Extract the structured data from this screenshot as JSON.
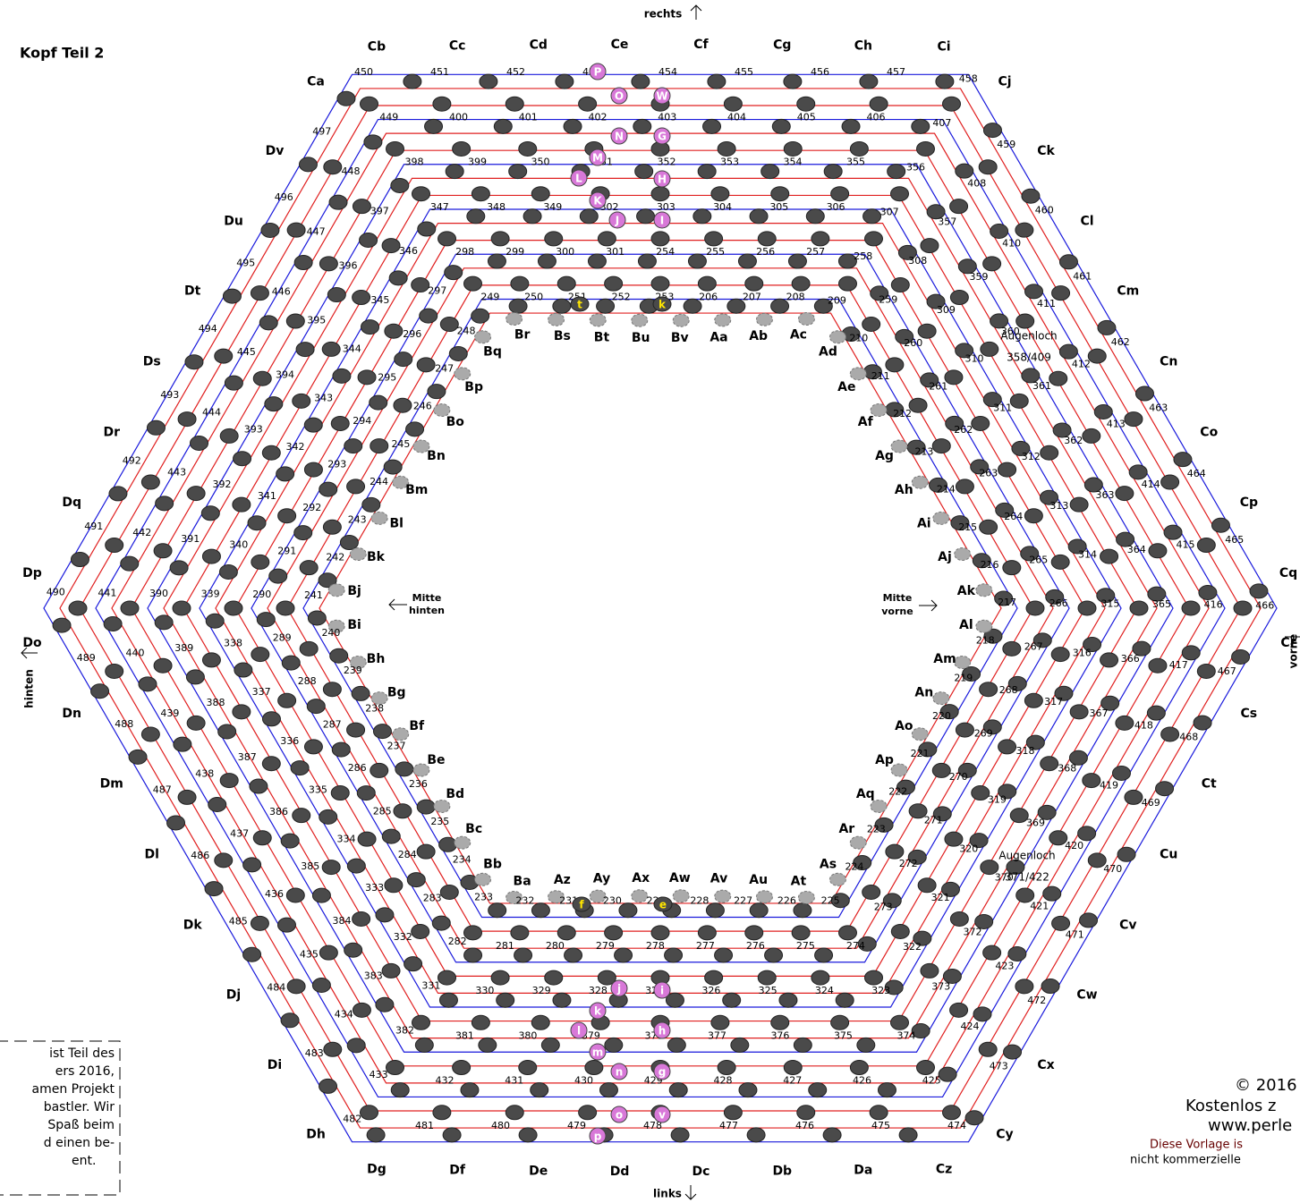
{
  "title": "Kopf Teil 2",
  "directions": {
    "top": "rechts",
    "bottom": "links",
    "left": "hinten",
    "right": "vorne"
  },
  "center_marks": {
    "back": [
      "Mitte",
      "hinten"
    ],
    "front": [
      "Mitte",
      "vorne"
    ]
  },
  "outer_labels": [
    "Ca",
    "Cb",
    "Cc",
    "Cd",
    "Ce",
    "Cf",
    "Cg",
    "Ch",
    "Ci",
    "Cj",
    "Ck",
    "Cl",
    "Cm",
    "Cn",
    "Co",
    "Cp",
    "Cq",
    "Cr",
    "Cs",
    "Ct",
    "Cu",
    "Cv",
    "Cw",
    "Cx",
    "Cy",
    "Cz",
    "Da",
    "Db",
    "Dc",
    "Dd",
    "De",
    "Df",
    "Dg",
    "Dh",
    "Di",
    "Dj",
    "Dk",
    "Dl",
    "Dm",
    "Dn",
    "Do",
    "Dp",
    "Dq",
    "Dr",
    "Ds",
    "Dt",
    "Du",
    "Dv"
  ],
  "inner_labels": [
    "Aa",
    "Ab",
    "Ac",
    "Ad",
    "Ae",
    "Af",
    "Ag",
    "Ah",
    "Ai",
    "Aj",
    "Ak",
    "Al",
    "Am",
    "An",
    "Ao",
    "Ap",
    "Aq",
    "Ar",
    "As",
    "At",
    "Au",
    "Av",
    "Aw",
    "Ax",
    "Ay",
    "Az",
    "Ba",
    "Bb",
    "Bc",
    "Bd",
    "Be",
    "Bf",
    "Bg",
    "Bh",
    "Bi",
    "Bj",
    "Bk",
    "Bl",
    "Bm",
    "Bn",
    "Bo",
    "Bp",
    "Bq",
    "Br",
    "Bs",
    "Bt",
    "Bu",
    "Bv"
  ],
  "rings": [
    [
      206,
      207,
      208,
      209,
      210,
      211,
      212,
      213,
      214,
      215,
      216,
      217,
      218,
      219,
      220,
      221,
      222,
      223,
      224,
      225,
      226,
      227,
      228,
      229,
      230,
      231,
      232,
      233,
      234,
      235,
      236,
      237,
      238,
      239,
      240,
      241,
      242,
      243,
      244,
      245,
      246,
      247,
      248,
      249,
      250,
      251,
      252,
      253
    ],
    [
      254,
      255,
      256,
      257,
      258,
      259,
      260,
      261,
      262,
      263,
      264,
      265,
      266,
      267,
      268,
      269,
      270,
      271,
      272,
      273,
      274,
      275,
      276,
      277,
      278,
      279,
      280,
      281,
      282,
      283,
      284,
      285,
      286,
      287,
      288,
      289,
      290,
      291,
      292,
      293,
      294,
      295,
      296,
      297,
      298,
      299,
      300,
      301
    ],
    [
      302,
      303,
      304,
      305,
      306,
      307,
      308,
      309,
      310,
      311,
      312,
      313,
      314,
      315,
      316,
      317,
      318,
      319,
      320,
      321,
      322,
      323,
      324,
      325,
      326,
      327,
      328,
      329,
      330,
      331,
      332,
      333,
      334,
      335,
      336,
      337,
      338,
      339,
      340,
      341,
      342,
      343,
      344,
      345,
      346,
      347,
      348,
      349
    ],
    [
      350,
      351,
      352,
      353,
      354,
      355,
      356,
      357,
      359,
      360,
      361,
      362,
      363,
      364,
      365,
      366,
      367,
      368,
      369,
      370,
      372,
      373,
      374,
      375,
      376,
      377,
      378,
      379,
      380,
      381,
      382,
      383,
      384,
      385,
      386,
      387,
      388,
      389,
      390,
      391,
      392,
      393,
      394,
      395,
      396,
      397,
      398,
      399
    ],
    [
      400,
      401,
      402,
      403,
      404,
      405,
      406,
      407,
      408,
      410,
      411,
      412,
      413,
      414,
      415,
      416,
      417,
      418,
      419,
      420,
      421,
      423,
      424,
      425,
      426,
      427,
      428,
      429,
      430,
      431,
      432,
      433,
      434,
      435,
      436,
      437,
      438,
      439,
      440,
      441,
      442,
      443,
      444,
      445,
      446,
      447,
      448,
      449
    ],
    [
      450,
      451,
      452,
      453,
      454,
      455,
      456,
      457,
      458,
      459,
      460,
      461,
      462,
      463,
      464,
      465,
      466,
      467,
      468,
      469,
      470,
      471,
      472,
      473,
      474,
      475,
      476,
      477,
      478,
      479,
      480,
      481,
      482,
      483,
      484,
      485,
      486,
      487,
      488,
      489,
      490,
      491,
      492,
      493,
      494,
      495,
      496,
      497
    ]
  ],
  "eye_holes": [
    {
      "label": "Augenloch",
      "numbers": "358/409"
    },
    {
      "label": "Augenloch",
      "numbers": "371/422"
    }
  ],
  "bead_letters": {
    "pink": {
      "color": "#d878d8",
      "letters": [
        "P",
        "O",
        "W",
        "N",
        "G",
        "M",
        "H",
        "L",
        "K",
        "J",
        "I",
        "j",
        "i",
        "k",
        "h",
        "l",
        "m",
        "n",
        "g",
        "o",
        "v",
        "p"
      ]
    },
    "yellow": {
      "color": "#ffe600",
      "letters": [
        "t",
        "k",
        "f",
        "e"
      ]
    }
  },
  "note_lines": [
    "ist Teil des",
    "ers 2016,",
    "amen Projekt",
    "bastler. Wir",
    "Spaß beim",
    "d einen be-",
    "ent."
  ],
  "copyright_lines": [
    "© 2016",
    "Kostenlos z",
    "www.perle",
    "Diese Vorlage is",
    "nicht kommerzielle"
  ]
}
